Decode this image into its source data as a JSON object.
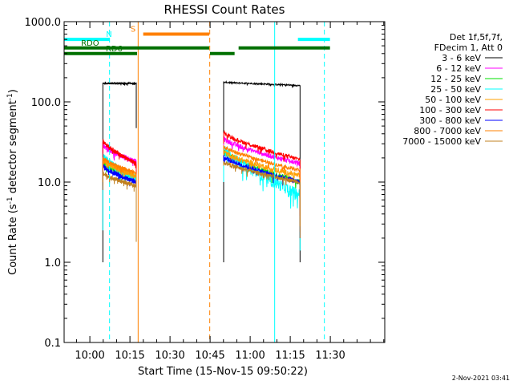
{
  "chart_data": {
    "type": "line",
    "title": "RHESSI Count Rates",
    "xlabel": "Start Time (15-Nov-15 09:50:22)",
    "ylabel_parts": [
      "Count Rate (s",
      "-1",
      " detector segment",
      "-1",
      ")"
    ],
    "yscale": "log",
    "xlim_minutes_after_start": [
      0,
      120
    ],
    "ylim": [
      0.1,
      1000
    ],
    "x_ticks": [
      {
        "label": "10:00",
        "min": 9.63
      },
      {
        "label": "10:15",
        "min": 24.63
      },
      {
        "label": "10:30",
        "min": 39.63
      },
      {
        "label": "10:45",
        "min": 54.63
      },
      {
        "label": "11:00",
        "min": 69.63
      },
      {
        "label": "11:15",
        "min": 84.63
      },
      {
        "label": "11:30",
        "min": 99.63
      }
    ],
    "x_tick_spacing_minutes": 5,
    "y_ticks": [
      {
        "label": "0.1",
        "value": 0.1
      },
      {
        "label": "1.0",
        "value": 1.0
      },
      {
        "label": "10.0",
        "value": 10.0
      },
      {
        "label": "100.0",
        "value": 100.0
      },
      {
        "label": "1000.0",
        "value": 1000.0
      }
    ],
    "legend": {
      "header": [
        "Det 1f,5f,7f,",
        "FDecim 1, Att 0"
      ],
      "placement": "right"
    },
    "colors": {
      "3-6": "#000000",
      "6-12": "#ff00ff",
      "12-25": "#00e000",
      "25-50": "#00ffff",
      "50-100": "#ffa000",
      "100-300": "#ff0000",
      "300-800": "#0000ff",
      "800-7000": "#ff8000",
      "7000-15000": "#c08020",
      "N": "#00ffff",
      "S": "#ff8000",
      "RD": "#007000"
    },
    "series": [
      {
        "name": "3 - 6 keV",
        "key": "3-6",
        "segments": [
          {
            "x0": 14.5,
            "x1": 27.0,
            "start": 1.0,
            "rise": 170,
            "end": 170,
            "drop": 47,
            "noise": 0.02,
            "plateau": true
          },
          {
            "x0": 59.7,
            "x1": 88.3,
            "start": 1.0,
            "rise": 175,
            "end": 160,
            "drop": 1.0,
            "noise": 0.02,
            "plateau": true
          }
        ]
      },
      {
        "name": "6 - 12 keV",
        "key": "6-12",
        "segments": [
          {
            "x0": 14.5,
            "x1": 27.0,
            "start": 10,
            "rise": 29,
            "end": 18,
            "noise": 0.07
          },
          {
            "x0": 59.7,
            "x1": 88.3,
            "start": 25,
            "rise": 35,
            "end": 17,
            "noise": 0.07
          }
        ]
      },
      {
        "name": "12 - 25 keV",
        "key": "12-25",
        "segments": [
          {
            "x0": 14.5,
            "x1": 27.0,
            "start": 9,
            "rise": 18,
            "end": 11,
            "noise": 0.08
          },
          {
            "x0": 59.7,
            "x1": 88.3,
            "start": 20,
            "rise": 24,
            "end": 10,
            "noise": 0.08
          }
        ]
      },
      {
        "name": "25 - 50 keV",
        "key": "25-50",
        "segments": [
          {
            "x0": 14.5,
            "x1": 27.0,
            "start": 2.5,
            "rise": 21,
            "end": 11,
            "noise": 0.12
          },
          {
            "x0": 59.7,
            "x1": 88.3,
            "start": 10,
            "rise": 27,
            "end": 7,
            "noise": 0.16
          }
        ]
      },
      {
        "name": "50 - 100 keV",
        "key": "50-100",
        "segments": [
          {
            "x0": 14.5,
            "x1": 27.0,
            "start": 9,
            "rise": 19,
            "end": 12,
            "noise": 0.08
          },
          {
            "x0": 59.7,
            "x1": 88.3,
            "start": 19,
            "rise": 24,
            "end": 12,
            "noise": 0.08
          }
        ]
      },
      {
        "name": "100 - 300 keV",
        "key": "100-300",
        "segments": [
          {
            "x0": 14.5,
            "x1": 27.0,
            "start": 12,
            "rise": 33,
            "end": 17,
            "noise": 0.06
          },
          {
            "x0": 59.7,
            "x1": 88.3,
            "start": 30,
            "rise": 42,
            "end": 19,
            "noise": 0.06
          }
        ]
      },
      {
        "name": "300 - 800 keV",
        "key": "300-800",
        "segments": [
          {
            "x0": 14.5,
            "x1": 27.0,
            "start": 8,
            "rise": 16,
            "end": 10,
            "noise": 0.07
          },
          {
            "x0": 59.7,
            "x1": 88.3,
            "start": 17,
            "rise": 21,
            "end": 10,
            "noise": 0.07
          }
        ]
      },
      {
        "name": "800 - 7000 keV",
        "key": "800-7000",
        "segments": [
          {
            "x0": 14.5,
            "x1": 27.0,
            "start": 10,
            "rise": 20,
            "end": 13,
            "noise": 0.05
          },
          {
            "x0": 59.7,
            "x1": 88.3,
            "start": 22,
            "rise": 28,
            "end": 14,
            "noise": 0.05
          }
        ]
      },
      {
        "name": "7000 - 15000 keV",
        "key": "7000-15000",
        "segments": [
          {
            "x0": 14.5,
            "x1": 27.0,
            "start": 8,
            "rise": 13,
            "end": 9,
            "noise": 0.06
          },
          {
            "x0": 59.7,
            "x1": 88.3,
            "start": 16,
            "rise": 18,
            "end": 10,
            "noise": 0.06
          }
        ]
      }
    ],
    "state_bars": [
      {
        "label": "N",
        "key": "N",
        "level": 600,
        "segments": [
          [
            0,
            17
          ],
          [
            87.5,
            99.5
          ]
        ],
        "label_at": 16.8
      },
      {
        "label": "S",
        "key": "S",
        "level": 700,
        "segments": [
          [
            29.6,
            54.3
          ]
        ],
        "label_at": 25.8
      },
      {
        "label": "RDO",
        "key": "RD",
        "level": 470,
        "segments": [
          [
            0,
            54.3
          ],
          [
            65.3,
            99.5
          ]
        ],
        "label_at": 9.7
      },
      {
        "label": "RD6",
        "key": "RD",
        "level": 400,
        "segments": [
          [
            0,
            27.3
          ],
          [
            54.6,
            63.8
          ]
        ],
        "label_at": 18.7
      }
    ],
    "vertical_markers": [
      {
        "key": "N",
        "at": 17.0,
        "style": "dashed"
      },
      {
        "key": "S",
        "at": 27.7,
        "style": "solid"
      },
      {
        "key": "S",
        "at": 54.5,
        "style": "dashed"
      },
      {
        "key": "N",
        "at": 78.8,
        "style": "solid"
      },
      {
        "key": "N",
        "at": 97.4,
        "style": "dashed"
      }
    ],
    "footer_date": "2-Nov-2021 03:41"
  }
}
